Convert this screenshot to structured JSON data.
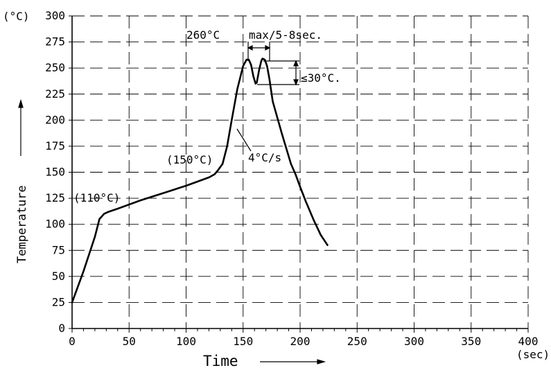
{
  "chart_data": {
    "type": "line",
    "xlabel": "Time",
    "ylabel": "Temperature",
    "x_unit": "(sec)",
    "y_unit": "(°C)",
    "xlim": [
      0,
      400
    ],
    "ylim": [
      0,
      300
    ],
    "x_ticks": [
      0,
      50,
      100,
      150,
      200,
      250,
      300,
      350,
      400
    ],
    "y_ticks": [
      0,
      25,
      50,
      75,
      100,
      125,
      150,
      175,
      200,
      225,
      250,
      275,
      300
    ],
    "grid": true,
    "series": [
      {
        "x": [
          0,
          10,
          20,
          24,
          28,
          32,
          40,
          60,
          80,
          100,
          120,
          125,
          128,
          132,
          136,
          140,
          145,
          150,
          153,
          155,
          157,
          159,
          161,
          162,
          164,
          166,
          167,
          169,
          171,
          173,
          176,
          184,
          192,
          196,
          200,
          205,
          212,
          218,
          224
        ],
        "y": [
          25,
          55,
          88,
          105,
          110,
          112,
          115,
          123,
          130,
          137,
          145,
          148,
          152,
          158,
          175,
          200,
          230,
          252,
          258,
          258,
          253,
          242,
          235,
          236,
          248,
          257,
          259,
          258,
          252,
          240,
          218,
          187,
          158,
          148,
          136,
          122,
          104,
          90,
          80
        ]
      }
    ],
    "annotations": {
      "t110": "(110°C)",
      "t150": "(150°C)",
      "peak": "260°C",
      "peak_window": "max/5-8sec.",
      "delta": "≤30°C.",
      "slope": "4°C/s"
    }
  }
}
